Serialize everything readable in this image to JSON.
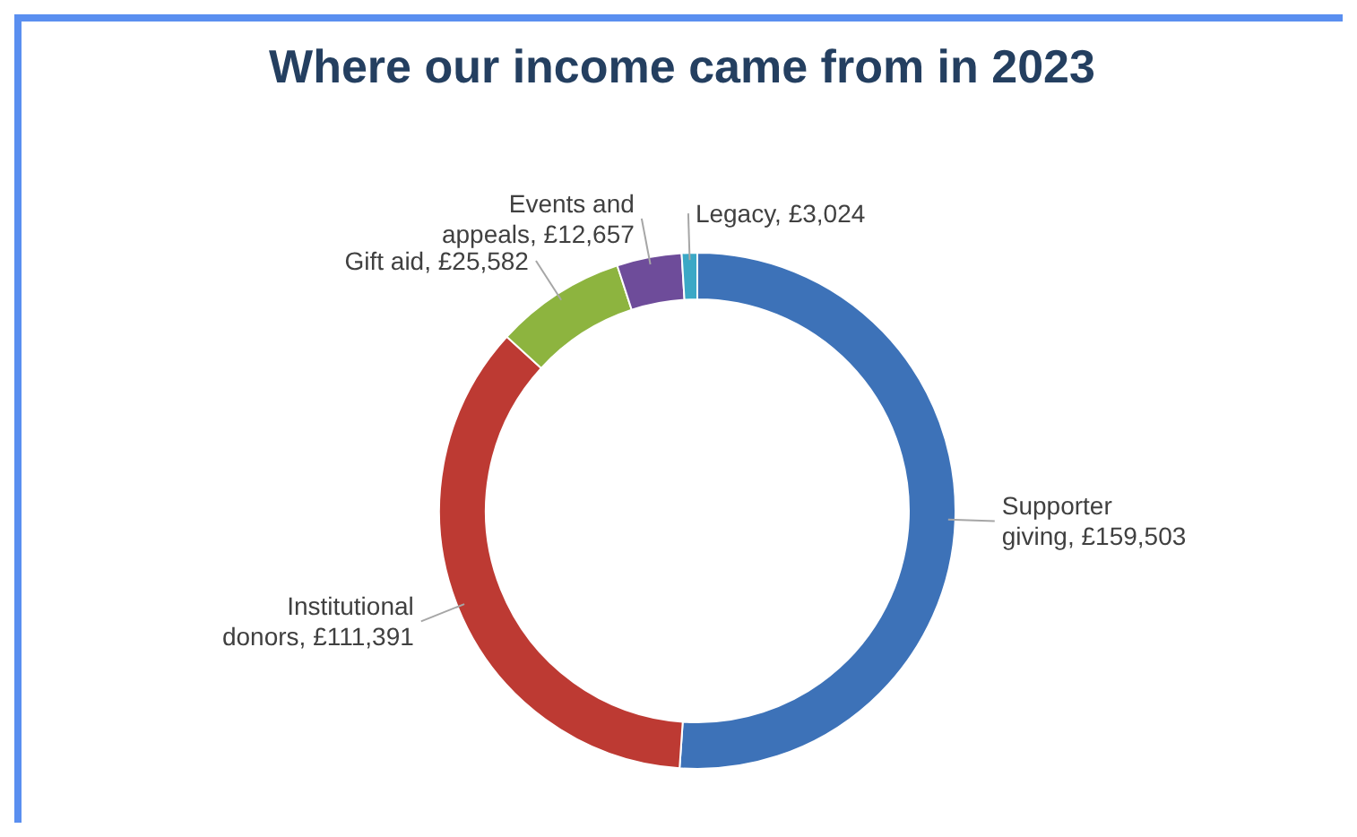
{
  "chart_data": {
    "type": "donut",
    "title": "Where our income came from in 2023",
    "categories": [
      "Supporter giving",
      "Institutional donors",
      "Gift aid",
      "Events and appeals",
      "Legacy"
    ],
    "values": [
      159503,
      111391,
      25582,
      12657,
      3024
    ],
    "value_labels": [
      "£159,503",
      "£111,391",
      "£25,582",
      "£12,657",
      "£3,024"
    ],
    "colors": [
      "#3d72b8",
      "#bd3a33",
      "#8db43f",
      "#6e4c9a",
      "#3ba8c6"
    ],
    "legend": false
  }
}
